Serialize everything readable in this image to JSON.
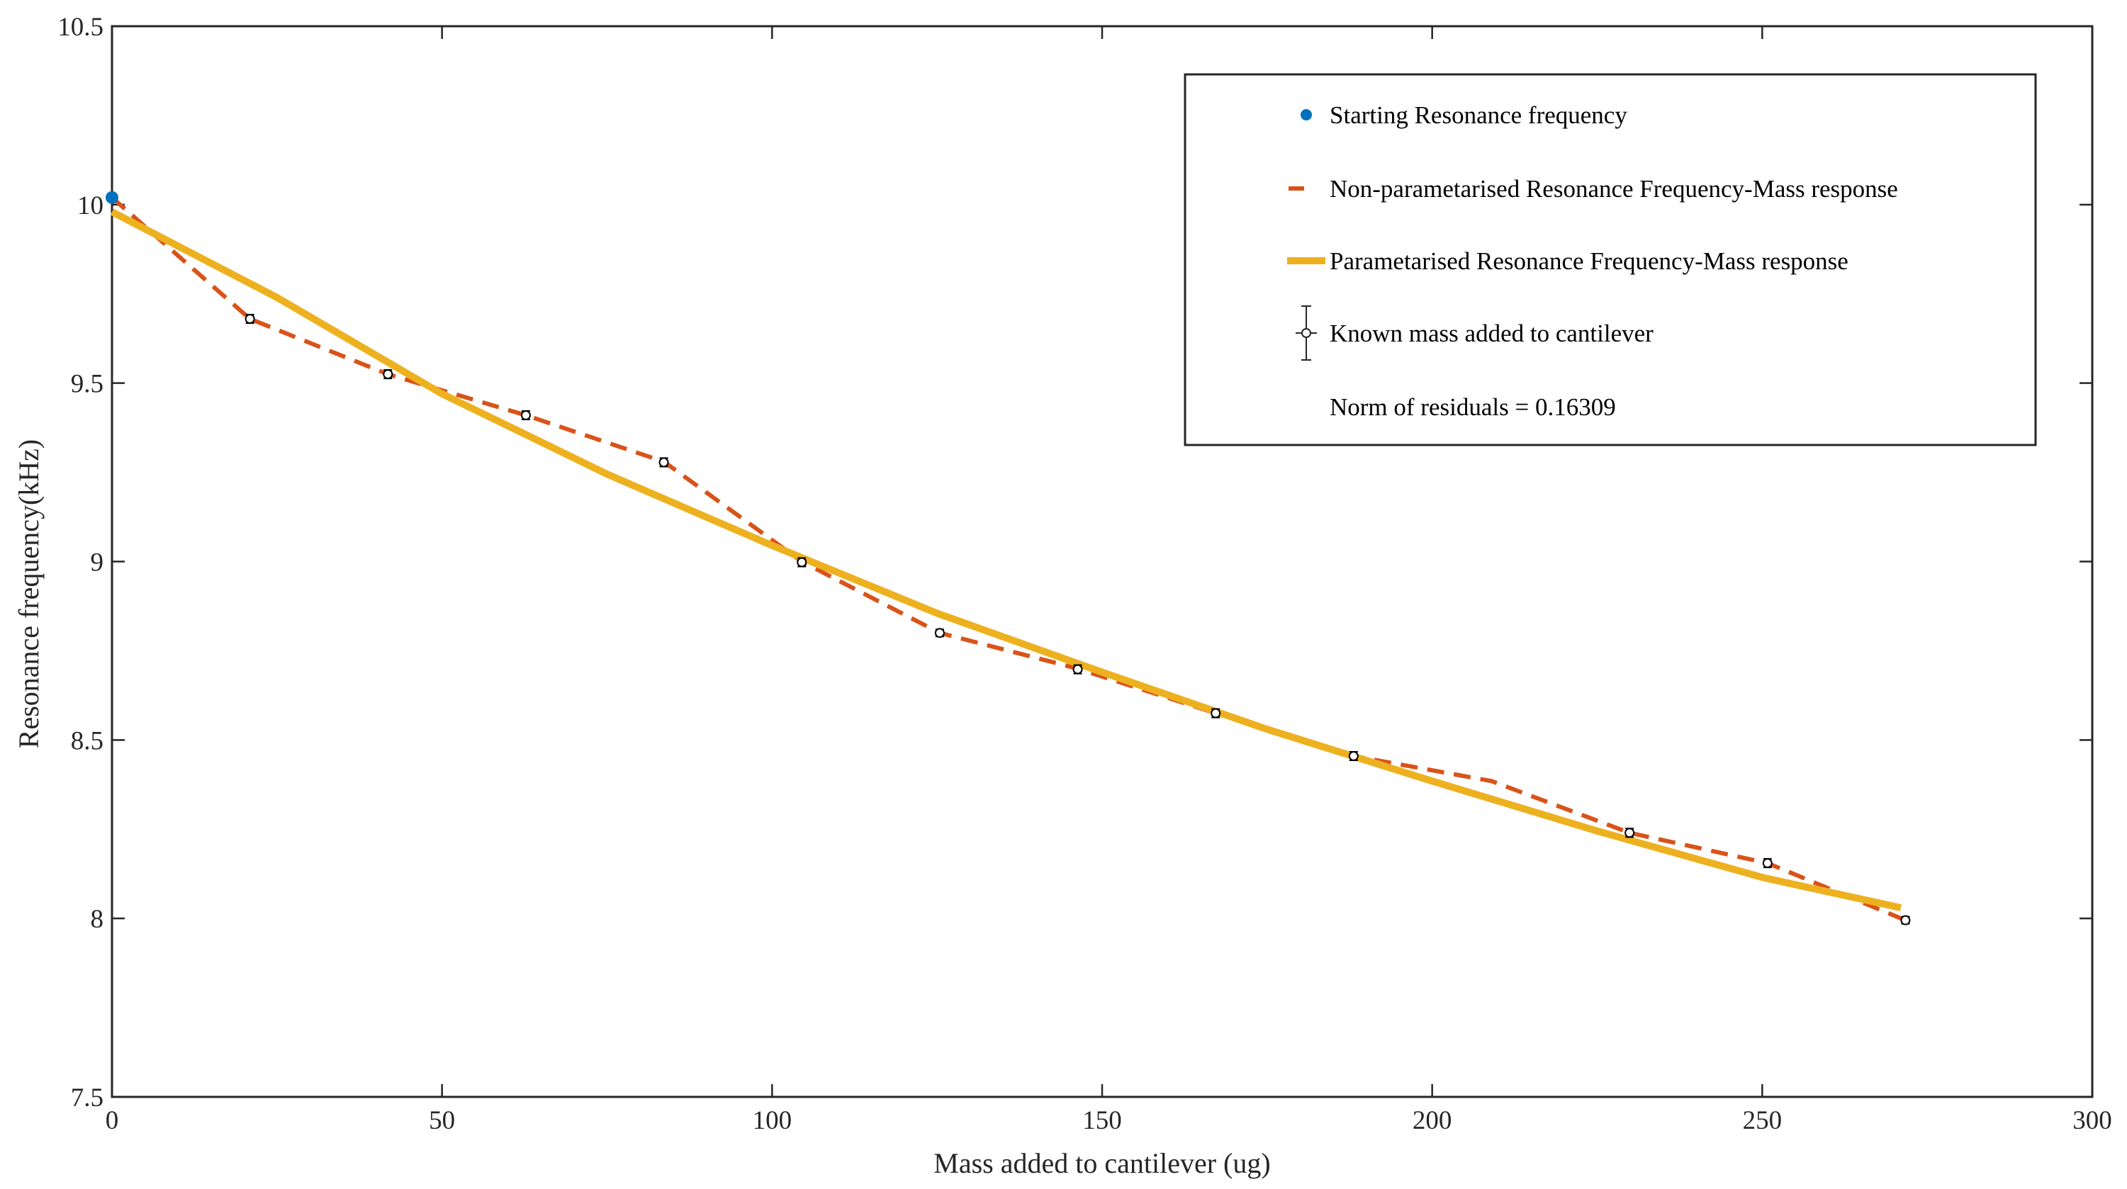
{
  "chart_data": {
    "type": "line",
    "xlabel": "Mass added to cantilever (ug)",
    "ylabel": "Resonance frequency(kHz)",
    "xlim": [
      0,
      300
    ],
    "ylim": [
      7.5,
      10.5
    ],
    "xticks": [
      0,
      50,
      100,
      150,
      200,
      250,
      300
    ],
    "xtick_labels": [
      "0",
      "50",
      "100",
      "150",
      "200",
      "250",
      "300"
    ],
    "yticks": [
      7.5,
      8,
      8.5,
      9,
      9.5,
      10,
      10.5
    ],
    "ytick_labels": [
      "7.5",
      "8",
      "8.5",
      "9",
      "9.5",
      "10",
      "10.5"
    ],
    "grid": false,
    "legend_position": "top-right",
    "colors": {
      "start": "#0072BD",
      "nonparam": "#D95319",
      "param": "#EDB120",
      "known": "#000000",
      "axis": "#262626"
    },
    "series": [
      {
        "name": "Starting Resonance frequency",
        "style": "marker",
        "x": [
          0
        ],
        "y": [
          10.02
        ]
      },
      {
        "name": "Non-parametarised Resonance Frequency-Mass response",
        "style": "dashed",
        "x": [
          0,
          20.9,
          41.8,
          62.7,
          83.6,
          104.5,
          125.4,
          146.3,
          167.2,
          188.1,
          209,
          229.9,
          250.8,
          271.7
        ],
        "y": [
          10.02,
          9.68,
          9.525,
          9.41,
          9.28,
          9.0,
          8.8,
          8.7,
          8.575,
          8.455,
          8.385,
          8.24,
          8.155,
          7.995
        ]
      },
      {
        "name": "Parametarised Resonance Frequency-Mass response",
        "style": "solid",
        "x": [
          0,
          25,
          50,
          75,
          100,
          125,
          150,
          175,
          200,
          225,
          250,
          271
        ],
        "y": [
          9.98,
          9.74,
          9.47,
          9.245,
          9.045,
          8.855,
          8.69,
          8.53,
          8.385,
          8.245,
          8.115,
          8.03
        ]
      },
      {
        "name": "Known mass added to cantilever",
        "style": "errorbar",
        "x": [
          20.9,
          41.8,
          62.7,
          83.6,
          104.5,
          125.4,
          146.3,
          167.2,
          188.1,
          229.9,
          250.8,
          271.7
        ],
        "y": [
          9.68,
          9.525,
          9.41,
          9.278,
          8.998,
          8.8,
          8.698,
          8.575,
          8.455,
          8.24,
          8.155,
          7.995
        ],
        "yerr": [
          0.012,
          0.012,
          0.012,
          0.012,
          0.012,
          0.01,
          0.012,
          0.012,
          0.012,
          0.012,
          0.012,
          0.01
        ],
        "xerr": [
          0.6,
          0.6,
          0.6,
          0.6,
          0.6,
          0.6,
          0.6,
          0.6,
          0.6,
          0.6,
          0.6,
          0.6
        ]
      }
    ],
    "legend": {
      "entries": [
        "Starting Resonance frequency",
        "Non-parametarised Resonance Frequency-Mass response",
        "Parametarised Resonance Frequency-Mass response",
        "Known mass added to cantilever",
        "Norm of residuals = 0.16309"
      ]
    }
  }
}
